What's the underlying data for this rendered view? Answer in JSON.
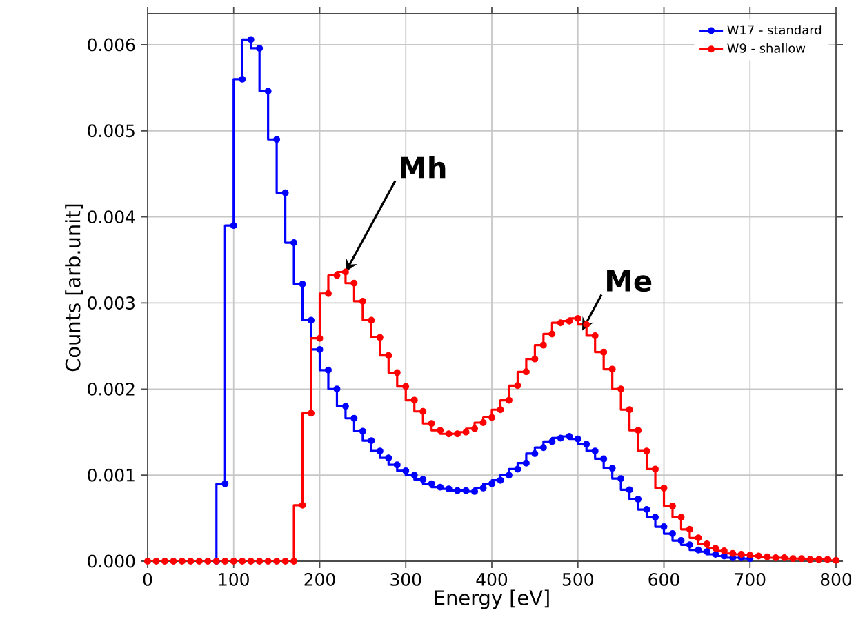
{
  "chart_data": {
    "type": "step",
    "xlabel": "Energy [eV]",
    "ylabel": "Counts [arb.unit]",
    "x": [
      0,
      10,
      20,
      30,
      40,
      50,
      60,
      70,
      80,
      90,
      100,
      110,
      120,
      130,
      140,
      150,
      160,
      170,
      180,
      190,
      200,
      210,
      220,
      230,
      240,
      250,
      260,
      270,
      280,
      290,
      300,
      310,
      320,
      330,
      340,
      350,
      360,
      370,
      380,
      390,
      400,
      410,
      420,
      430,
      440,
      450,
      460,
      470,
      480,
      490,
      500,
      510,
      520,
      530,
      540,
      550,
      560,
      570,
      580,
      590,
      600,
      610,
      620,
      630,
      640,
      650,
      660,
      670,
      680,
      690,
      700,
      710,
      720,
      730,
      740,
      750,
      760,
      770,
      780,
      790,
      800
    ],
    "series": [
      {
        "name": "W17 - standard",
        "color": "#0000ff",
        "values": [
          null,
          null,
          null,
          null,
          null,
          null,
          null,
          null,
          0,
          0.0009,
          0.0039,
          0.0056,
          0.00606,
          0.00596,
          0.00546,
          0.0049,
          0.00428,
          0.0037,
          0.00322,
          0.0028,
          0.00246,
          0.00222,
          0.002,
          0.0018,
          0.00166,
          0.00151,
          0.0014,
          0.00128,
          0.0012,
          0.00112,
          0.00105,
          0.001,
          0.00095,
          0.0009,
          0.00086,
          0.00084,
          0.00082,
          0.00082,
          0.00081,
          0.00085,
          0.0009,
          0.00094,
          0.001,
          0.00107,
          0.00114,
          0.00125,
          0.00132,
          0.00139,
          0.00143,
          0.00145,
          0.00142,
          0.00136,
          0.00128,
          0.00119,
          0.00108,
          0.00096,
          0.00083,
          0.00072,
          0.0006,
          0.00051,
          0.0004,
          0.00032,
          0.00024,
          0.00019,
          0.00013,
          0.00011,
          8e-05,
          6e-05,
          4e-05,
          4e-05,
          3e-05,
          null,
          null,
          null,
          null,
          null,
          null,
          null,
          null,
          null,
          null
        ]
      },
      {
        "name": "W9 - shallow",
        "color": "#ff0000",
        "values": [
          0,
          0,
          0,
          0,
          0,
          0,
          0,
          0,
          0,
          0,
          0,
          0,
          0,
          0,
          0,
          0,
          0,
          0,
          0.00065,
          0.00172,
          0.00259,
          0.00311,
          0.00332,
          0.00336,
          0.00323,
          0.00302,
          0.0028,
          0.0026,
          0.00239,
          0.00219,
          0.00203,
          0.00187,
          0.00174,
          0.0016,
          0.00152,
          0.00148,
          0.00148,
          0.0015,
          0.00154,
          0.00161,
          0.00167,
          0.00176,
          0.00187,
          0.00204,
          0.0022,
          0.00235,
          0.00251,
          0.00264,
          0.00277,
          0.00279,
          0.00282,
          0.00275,
          0.00262,
          0.00243,
          0.00223,
          0.002,
          0.00176,
          0.00152,
          0.00128,
          0.00107,
          0.00085,
          0.00064,
          0.00051,
          0.00037,
          0.00027,
          0.0002,
          0.00015,
          0.00012,
          9e-05,
          8e-05,
          7e-05,
          6e-05,
          5e-05,
          4e-05,
          4e-05,
          3e-05,
          3e-05,
          2e-05,
          2e-05,
          2e-05,
          1e-05
        ]
      }
    ],
    "xlim": [
      0,
      800
    ],
    "ylim": [
      0,
      0.00636
    ],
    "xticks": [
      0,
      100,
      200,
      300,
      400,
      500,
      600,
      700,
      800
    ],
    "yticks": [
      {
        "value": 0,
        "label": "0.000"
      },
      {
        "value": 0.001,
        "label": "0.001"
      },
      {
        "value": 0.002,
        "label": "0.002"
      },
      {
        "value": 0.003,
        "label": "0.003"
      },
      {
        "value": 0.004,
        "label": "0.004"
      },
      {
        "value": 0.005,
        "label": "0.005"
      },
      {
        "value": 0.006,
        "label": "0.006"
      }
    ],
    "annotations": [
      {
        "text": "Mh",
        "x": 230,
        "y": 0.00336
      },
      {
        "text": "Me",
        "x": 505,
        "y": 0.00268
      }
    ],
    "grid": true,
    "legend": "top right",
    "marker": "circle",
    "line_style": "solid"
  }
}
